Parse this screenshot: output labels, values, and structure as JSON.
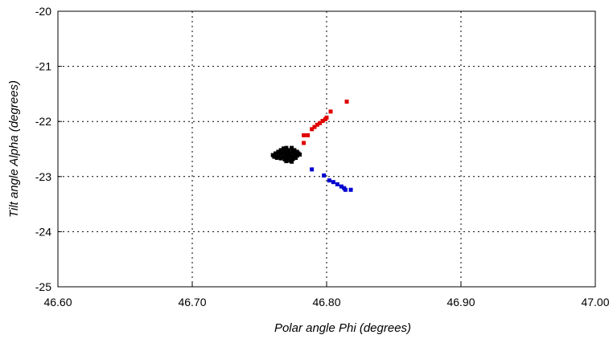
{
  "chart_data": {
    "type": "scatter",
    "title": "",
    "xlabel": "Polar angle Phi (degrees)",
    "ylabel": "Tilt angle Alpha (degrees)",
    "xlim": [
      46.6,
      47.0
    ],
    "ylim": [
      -25,
      -20
    ],
    "x_ticks": [
      46.6,
      46.7,
      46.8,
      46.9,
      47.0
    ],
    "x_tick_labels": [
      "46.60",
      "46.70",
      "46.80",
      "46.90",
      "47.00"
    ],
    "y_ticks": [
      -25,
      -24,
      -23,
      -22,
      -21,
      -20
    ],
    "y_tick_labels": [
      "-25",
      "-24",
      "-23",
      "-22",
      "-21",
      "-20"
    ],
    "grid": true,
    "legend": "none",
    "series": [
      {
        "color": "#000000",
        "points": [
          [
            46.76,
            -22.61
          ],
          [
            46.762,
            -22.58
          ],
          [
            46.764,
            -22.55
          ],
          [
            46.764,
            -22.63
          ],
          [
            46.765,
            -22.6
          ],
          [
            46.766,
            -22.52
          ],
          [
            46.766,
            -22.67
          ],
          [
            46.767,
            -22.57
          ],
          [
            46.768,
            -22.63
          ],
          [
            46.769,
            -22.54
          ],
          [
            46.769,
            -22.69
          ],
          [
            46.77,
            -22.6
          ],
          [
            46.77,
            -22.48
          ],
          [
            46.771,
            -22.56
          ],
          [
            46.771,
            -22.66
          ],
          [
            46.772,
            -22.52
          ],
          [
            46.772,
            -22.62
          ],
          [
            46.773,
            -22.71
          ],
          [
            46.773,
            -22.58
          ],
          [
            46.774,
            -22.48
          ],
          [
            46.774,
            -22.64
          ],
          [
            46.775,
            -22.55
          ],
          [
            46.775,
            -22.68
          ],
          [
            46.776,
            -22.6
          ],
          [
            46.776,
            -22.52
          ],
          [
            46.777,
            -22.66
          ],
          [
            46.777,
            -22.57
          ],
          [
            46.778,
            -22.62
          ],
          [
            46.779,
            -22.58
          ],
          [
            46.78,
            -22.6
          ],
          [
            46.768,
            -22.49
          ],
          [
            46.763,
            -22.66
          ],
          [
            46.77,
            -22.72
          ],
          [
            46.774,
            -22.73
          ],
          [
            46.778,
            -22.55
          ],
          [
            46.761,
            -22.64
          ]
        ]
      },
      {
        "color": "#e00000",
        "points": [
          [
            46.783,
            -22.39
          ],
          [
            46.783,
            -22.25
          ],
          [
            46.786,
            -22.25
          ],
          [
            46.789,
            -22.14
          ],
          [
            46.791,
            -22.1
          ],
          [
            46.793,
            -22.06
          ],
          [
            46.795,
            -22.03
          ],
          [
            46.797,
            -21.99
          ],
          [
            46.799,
            -21.96
          ],
          [
            46.8,
            -21.93
          ],
          [
            46.803,
            -21.82
          ],
          [
            46.815,
            -21.64
          ]
        ]
      },
      {
        "color": "#0000d0",
        "points": [
          [
            46.789,
            -22.87
          ],
          [
            46.798,
            -22.98
          ],
          [
            46.802,
            -23.07
          ],
          [
            46.805,
            -23.1
          ],
          [
            46.808,
            -23.14
          ],
          [
            46.811,
            -23.18
          ],
          [
            46.813,
            -23.21
          ],
          [
            46.814,
            -23.24
          ],
          [
            46.818,
            -23.24
          ]
        ]
      }
    ]
  }
}
